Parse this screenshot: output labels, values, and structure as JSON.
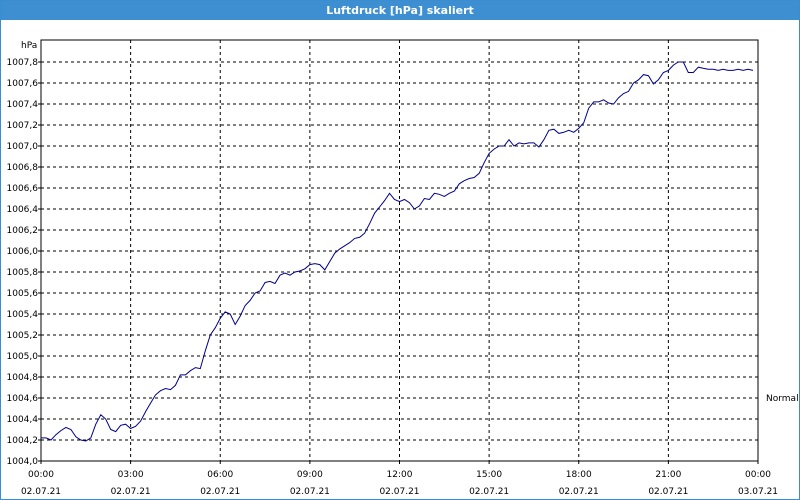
{
  "window": {
    "title": "Luftdruck [hPa] skaliert"
  },
  "chart_data": {
    "type": "line",
    "title": "Luftdruck [hPa] skaliert",
    "ylabel": "hPa",
    "xlabel": "",
    "ylim": [
      1004.0,
      1007.9
    ],
    "yticks": [
      "1007,8",
      "1007,6",
      "1007,4",
      "1007,2",
      "1007,0",
      "1006,8",
      "1006,6",
      "1006,4",
      "1006,2",
      "1006,0",
      "1005,8",
      "1005,6",
      "1005,4",
      "1005,2",
      "1005,0",
      "1004,8",
      "1004,6",
      "1004,4",
      "1004,2",
      "1004,0"
    ],
    "xticks": [
      {
        "time": "00:00",
        "date": "02.07.21"
      },
      {
        "time": "03:00",
        "date": "02.07.21"
      },
      {
        "time": "06:00",
        "date": "02.07.21"
      },
      {
        "time": "09:00",
        "date": "02.07.21"
      },
      {
        "time": "12:00",
        "date": "02.07.21"
      },
      {
        "time": "15:00",
        "date": "02.07.21"
      },
      {
        "time": "18:00",
        "date": "02.07.21"
      },
      {
        "time": "21:00",
        "date": "02.07.21"
      },
      {
        "time": "00:00",
        "date": "03.07.21"
      }
    ],
    "grid": true,
    "reference_line": {
      "label": "Normal",
      "value": 1004.6
    },
    "series": [
      {
        "color": "#00008b",
        "x": [
          "02.07.21 00:00",
          "02.07.21 00:10",
          "02.07.21 00:20",
          "02.07.21 00:30",
          "02.07.21 00:40",
          "02.07.21 00:50",
          "02.07.21 01:00",
          "02.07.21 01:10",
          "02.07.21 01:20",
          "02.07.21 01:30",
          "02.07.21 01:40",
          "02.07.21 01:50",
          "02.07.21 02:00",
          "02.07.21 02:10",
          "02.07.21 02:20",
          "02.07.21 02:30",
          "02.07.21 02:40",
          "02.07.21 02:50",
          "02.07.21 03:00",
          "02.07.21 03:10",
          "02.07.21 03:20",
          "02.07.21 03:30",
          "02.07.21 03:40",
          "02.07.21 03:50",
          "02.07.21 04:00",
          "02.07.21 04:10",
          "02.07.21 04:20",
          "02.07.21 04:30",
          "02.07.21 04:40",
          "02.07.21 04:50",
          "02.07.21 05:00",
          "02.07.21 05:10",
          "02.07.21 05:20",
          "02.07.21 05:30",
          "02.07.21 05:40",
          "02.07.21 05:50",
          "02.07.21 06:00",
          "02.07.21 06:10",
          "02.07.21 06:20",
          "02.07.21 06:30",
          "02.07.21 06:40",
          "02.07.21 06:50",
          "02.07.21 07:00",
          "02.07.21 07:10",
          "02.07.21 07:20",
          "02.07.21 07:30",
          "02.07.21 07:40",
          "02.07.21 07:50",
          "02.07.21 08:00",
          "02.07.21 08:10",
          "02.07.21 08:20",
          "02.07.21 08:30",
          "02.07.21 08:40",
          "02.07.21 08:50",
          "02.07.21 09:00",
          "02.07.21 09:10",
          "02.07.21 09:20",
          "02.07.21 09:30",
          "02.07.21 09:40",
          "02.07.21 09:50",
          "02.07.21 10:00",
          "02.07.21 10:10",
          "02.07.21 10:20",
          "02.07.21 10:30",
          "02.07.21 10:40",
          "02.07.21 10:50",
          "02.07.21 11:00",
          "02.07.21 11:10",
          "02.07.21 11:20",
          "02.07.21 11:30",
          "02.07.21 11:40",
          "02.07.21 11:50",
          "02.07.21 12:00",
          "02.07.21 12:10",
          "02.07.21 12:20",
          "02.07.21 12:30",
          "02.07.21 12:40",
          "02.07.21 12:50",
          "02.07.21 13:00",
          "02.07.21 13:10",
          "02.07.21 13:20",
          "02.07.21 13:30",
          "02.07.21 13:40",
          "02.07.21 13:50",
          "02.07.21 14:00",
          "02.07.21 14:10",
          "02.07.21 14:20",
          "02.07.21 14:30",
          "02.07.21 14:40",
          "02.07.21 14:50",
          "02.07.21 15:00",
          "02.07.21 15:10",
          "02.07.21 15:20",
          "02.07.21 15:30",
          "02.07.21 15:40",
          "02.07.21 15:50",
          "02.07.21 16:00",
          "02.07.21 16:10",
          "02.07.21 16:20",
          "02.07.21 16:30",
          "02.07.21 16:40",
          "02.07.21 16:50",
          "02.07.21 17:00",
          "02.07.21 17:10",
          "02.07.21 17:20",
          "02.07.21 17:30",
          "02.07.21 17:40",
          "02.07.21 17:50",
          "02.07.21 18:00",
          "02.07.21 18:10",
          "02.07.21 18:20",
          "02.07.21 18:30",
          "02.07.21 18:40",
          "02.07.21 18:50",
          "02.07.21 19:00",
          "02.07.21 19:10",
          "02.07.21 19:20",
          "02.07.21 19:30",
          "02.07.21 19:40",
          "02.07.21 19:50",
          "02.07.21 20:00",
          "02.07.21 20:10",
          "02.07.21 20:20",
          "02.07.21 20:30",
          "02.07.21 20:40",
          "02.07.21 20:50",
          "02.07.21 21:00",
          "02.07.21 21:10",
          "02.07.21 21:20",
          "02.07.21 21:30",
          "02.07.21 21:40",
          "02.07.21 21:50",
          "02.07.21 22:00",
          "02.07.21 22:10",
          "02.07.21 22:20",
          "02.07.21 22:30",
          "02.07.21 22:40",
          "02.07.21 22:50",
          "02.07.21 23:00",
          "02.07.21 23:10",
          "02.07.21 23:20",
          "02.07.21 23:30",
          "02.07.21 23:40",
          "02.07.21 23:50"
        ],
        "y": [
          1004.22,
          1004.22,
          1004.2,
          1004.25,
          1004.29,
          1004.32,
          1004.3,
          1004.23,
          1004.2,
          1004.19,
          1004.22,
          1004.35,
          1004.44,
          1004.4,
          1004.3,
          1004.28,
          1004.34,
          1004.35,
          1004.31,
          1004.33,
          1004.38,
          1004.47,
          1004.55,
          1004.63,
          1004.67,
          1004.69,
          1004.68,
          1004.72,
          1004.82,
          1004.82,
          1004.86,
          1004.89,
          1004.88,
          1005.05,
          1005.2,
          1005.27,
          1005.36,
          1005.42,
          1005.4,
          1005.3,
          1005.38,
          1005.48,
          1005.53,
          1005.6,
          1005.62,
          1005.7,
          1005.71,
          1005.69,
          1005.77,
          1005.79,
          1005.77,
          1005.8,
          1005.81,
          1005.83,
          1005.87,
          1005.88,
          1005.87,
          1005.82,
          1005.9,
          1005.98,
          1006.02,
          1006.05,
          1006.08,
          1006.12,
          1006.13,
          1006.17,
          1006.26,
          1006.36,
          1006.42,
          1006.48,
          1006.55,
          1006.49,
          1006.47,
          1006.49,
          1006.46,
          1006.4,
          1006.43,
          1006.5,
          1006.49,
          1006.55,
          1006.54,
          1006.52,
          1006.55,
          1006.57,
          1006.64,
          1006.67,
          1006.69,
          1006.7,
          1006.74,
          1006.84,
          1006.93,
          1006.97,
          1007.0,
          1007.0,
          1007.06,
          1007.0,
          1007.03,
          1007.02,
          1007.03,
          1007.03,
          1006.99,
          1007.06,
          1007.15,
          1007.16,
          1007.12,
          1007.13,
          1007.15,
          1007.13,
          1007.17,
          1007.22,
          1007.36,
          1007.42,
          1007.42,
          1007.44,
          1007.41,
          1007.4,
          1007.46,
          1007.5,
          1007.52,
          1007.6,
          1007.63,
          1007.68,
          1007.67,
          1007.59,
          1007.63,
          1007.7,
          1007.72,
          1007.77,
          1007.8,
          1007.8,
          1007.7,
          1007.7,
          1007.75,
          1007.74,
          1007.73,
          1007.73,
          1007.72,
          1007.73,
          1007.72,
          1007.72,
          1007.73,
          1007.72,
          1007.73,
          1007.72
        ]
      }
    ]
  }
}
